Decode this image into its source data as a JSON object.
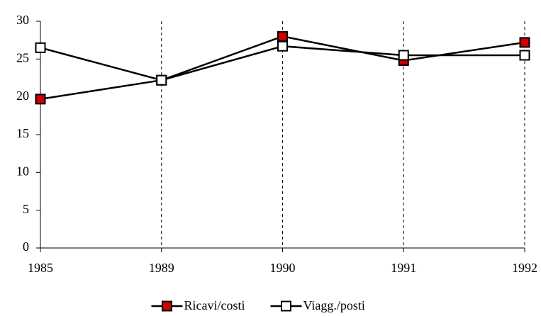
{
  "chart_data": {
    "type": "line",
    "categories": [
      "1985",
      "1989",
      "1990",
      "1991",
      "1992"
    ],
    "series": [
      {
        "name": "Ricavi/costi",
        "color": "#cc0000",
        "values": [
          19.7,
          22.2,
          28.0,
          24.8,
          27.2
        ]
      },
      {
        "name": "Viagg./posti",
        "color": "#ffffff",
        "values": [
          26.5,
          22.2,
          26.7,
          25.5,
          25.5
        ]
      }
    ],
    "ylim": [
      0,
      30
    ],
    "yticks": [
      0,
      5,
      10,
      15,
      20,
      25,
      30
    ],
    "grid": true,
    "legend": "bottom"
  }
}
